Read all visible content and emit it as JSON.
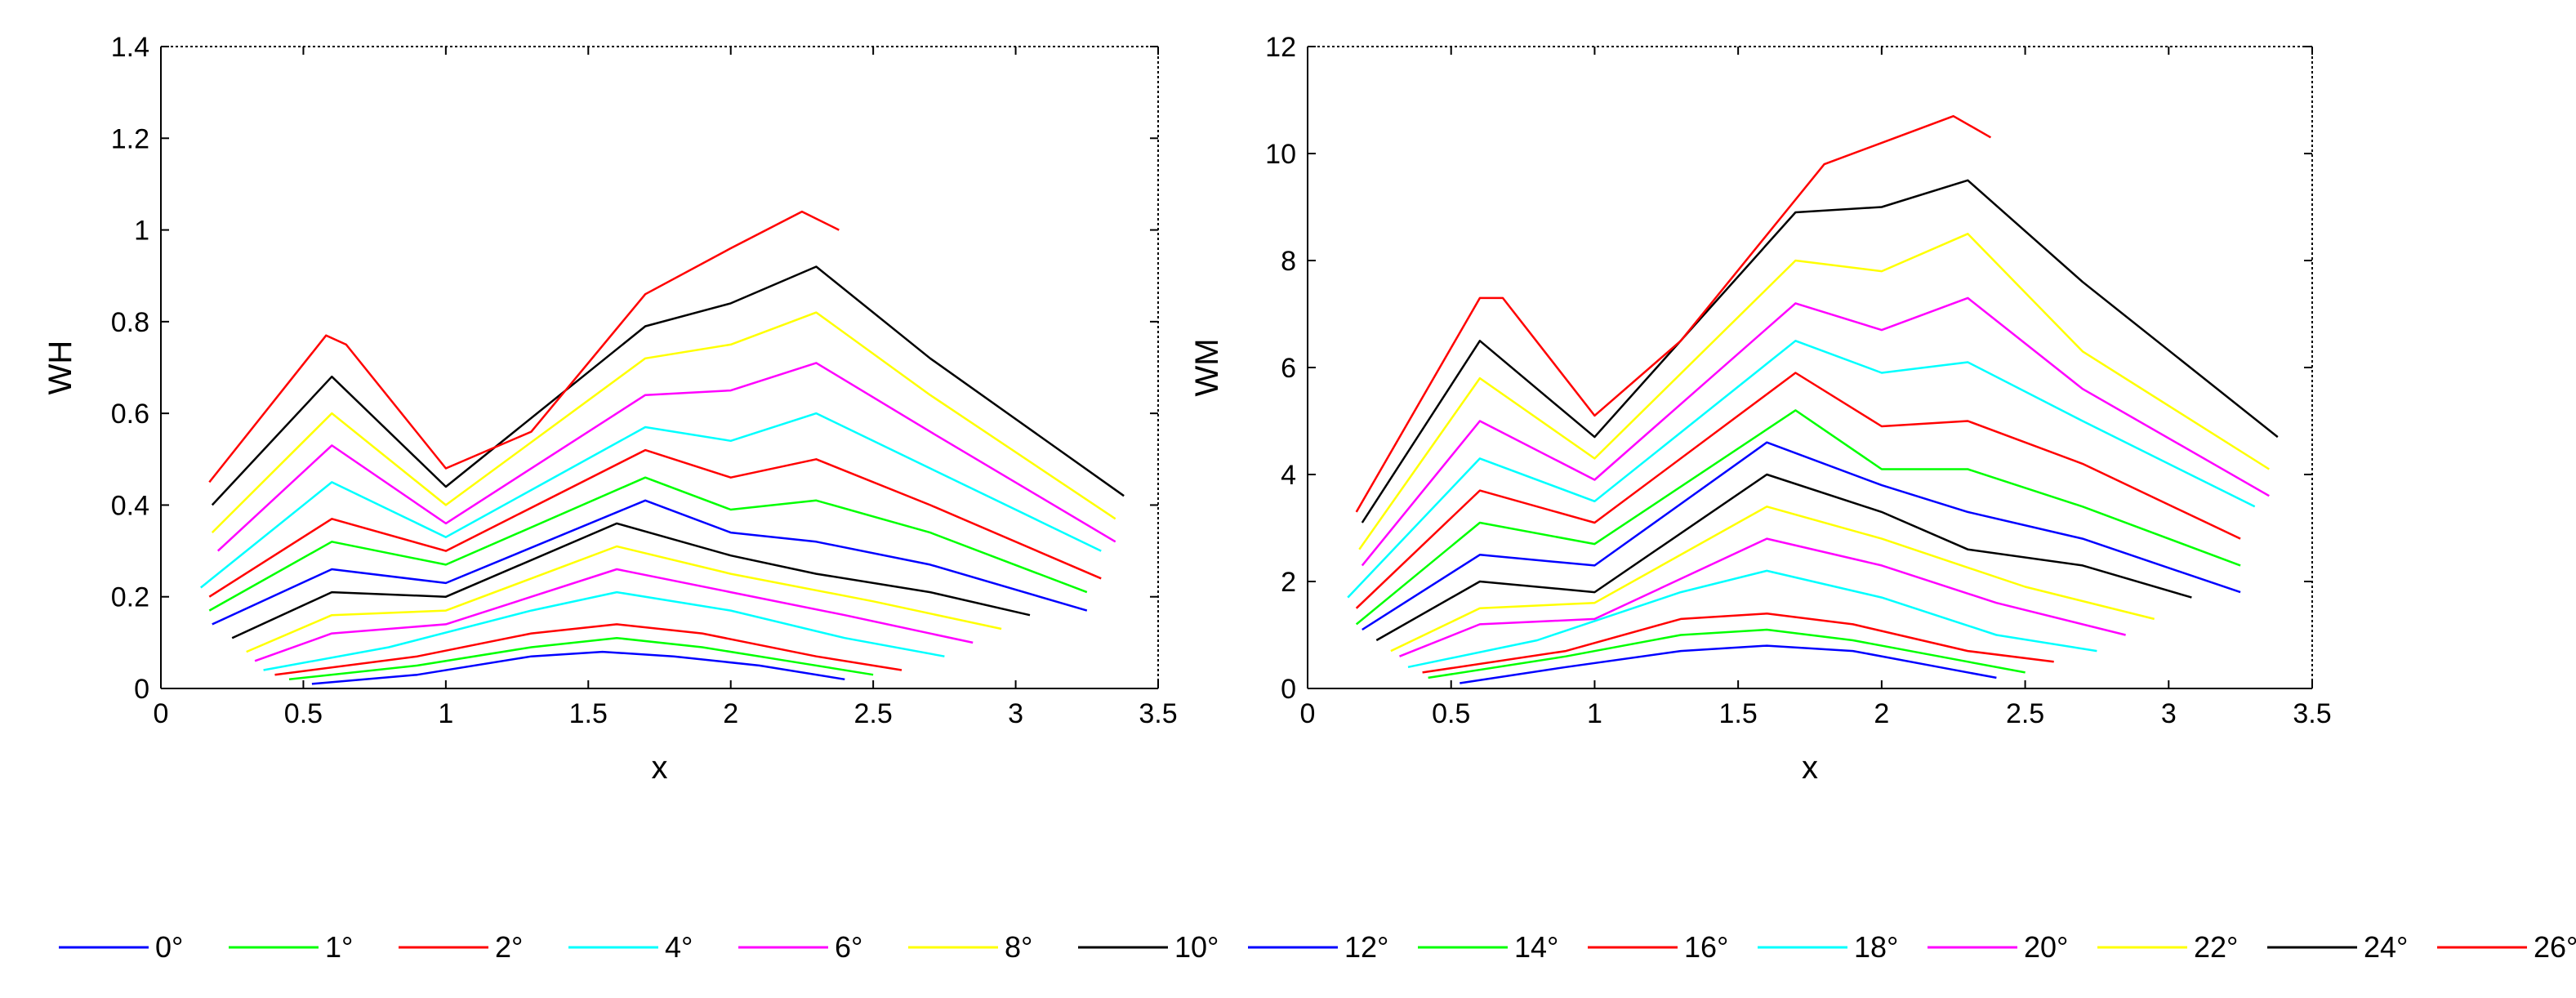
{
  "legend": {
    "placement": "bottom",
    "entries": [
      {
        "label": "0°",
        "color": "#0000ff"
      },
      {
        "label": "1°",
        "color": "#00ff00"
      },
      {
        "label": "2°",
        "color": "#ff0000"
      },
      {
        "label": "4°",
        "color": "#00ffff"
      },
      {
        "label": "6°",
        "color": "#ff00ff"
      },
      {
        "label": "8°",
        "color": "#ffff00"
      },
      {
        "label": "10°",
        "color": "#000000"
      },
      {
        "label": "12°",
        "color": "#0000ff"
      },
      {
        "label": "14°",
        "color": "#00ff00"
      },
      {
        "label": "16°",
        "color": "#ff0000"
      },
      {
        "label": "18°",
        "color": "#00ffff"
      },
      {
        "label": "20°",
        "color": "#ff00ff"
      },
      {
        "label": "22°",
        "color": "#ffff00"
      },
      {
        "label": "24°",
        "color": "#000000"
      },
      {
        "label": "26°",
        "color": "#ff0000"
      }
    ]
  },
  "chart_data": [
    {
      "type": "line",
      "xlabel": "x",
      "ylabel": "WH",
      "xlim": [
        0,
        3.5
      ],
      "ylim": [
        0,
        1.4
      ],
      "xticks": [
        "0",
        "0.5",
        "1",
        "1.5",
        "2",
        "2.5",
        "3",
        "3.5"
      ],
      "yticks": [
        "0",
        "0.2",
        "0.4",
        "0.6",
        "0.8",
        "1",
        "1.2",
        "1.4"
      ],
      "grid": false,
      "series": [
        {
          "name": "0°",
          "color": "#0000ff",
          "x": [
            0.53,
            0.9,
            1.3,
            1.55,
            1.8,
            2.1,
            2.4
          ],
          "y": [
            0.01,
            0.03,
            0.07,
            0.08,
            0.07,
            0.05,
            0.02
          ]
        },
        {
          "name": "1°",
          "color": "#00ff00",
          "x": [
            0.45,
            0.9,
            1.3,
            1.6,
            1.9,
            2.2,
            2.5
          ],
          "y": [
            0.02,
            0.05,
            0.09,
            0.11,
            0.09,
            0.06,
            0.03
          ]
        },
        {
          "name": "2°",
          "color": "#ff0000",
          "x": [
            0.4,
            0.9,
            1.3,
            1.6,
            1.9,
            2.3,
            2.6
          ],
          "y": [
            0.03,
            0.07,
            0.12,
            0.14,
            0.12,
            0.07,
            0.04
          ]
        },
        {
          "name": "4°",
          "color": "#00ffff",
          "x": [
            0.36,
            0.8,
            1.3,
            1.6,
            2.0,
            2.4,
            2.75
          ],
          "y": [
            0.04,
            0.09,
            0.17,
            0.21,
            0.17,
            0.11,
            0.07
          ]
        },
        {
          "name": "6°",
          "color": "#ff00ff",
          "x": [
            0.33,
            0.6,
            1.0,
            1.6,
            2.0,
            2.4,
            2.85
          ],
          "y": [
            0.06,
            0.12,
            0.14,
            0.26,
            0.21,
            0.16,
            0.1
          ]
        },
        {
          "name": "8°",
          "color": "#ffff00",
          "x": [
            0.3,
            0.6,
            1.0,
            1.6,
            2.0,
            2.5,
            2.95
          ],
          "y": [
            0.08,
            0.16,
            0.17,
            0.31,
            0.25,
            0.19,
            0.13
          ]
        },
        {
          "name": "10°",
          "color": "#000000",
          "x": [
            0.25,
            0.6,
            1.0,
            1.6,
            2.0,
            2.3,
            2.7,
            3.05
          ],
          "y": [
            0.11,
            0.21,
            0.2,
            0.36,
            0.29,
            0.25,
            0.21,
            0.16
          ]
        },
        {
          "name": "12°",
          "color": "#0000ff",
          "x": [
            0.18,
            0.6,
            1.0,
            1.7,
            2.0,
            2.3,
            2.7,
            3.25
          ],
          "y": [
            0.14,
            0.26,
            0.23,
            0.41,
            0.34,
            0.32,
            0.27,
            0.17
          ]
        },
        {
          "name": "14°",
          "color": "#00ff00",
          "x": [
            0.17,
            0.6,
            1.0,
            1.7,
            2.0,
            2.3,
            2.7,
            3.25
          ],
          "y": [
            0.17,
            0.32,
            0.27,
            0.46,
            0.39,
            0.41,
            0.34,
            0.21
          ]
        },
        {
          "name": "16°",
          "color": "#ff0000",
          "x": [
            0.17,
            0.6,
            1.0,
            1.7,
            2.0,
            2.3,
            2.7,
            3.3
          ],
          "y": [
            0.2,
            0.37,
            0.3,
            0.52,
            0.46,
            0.5,
            0.4,
            0.24
          ]
        },
        {
          "name": "18°",
          "color": "#00ffff",
          "x": [
            0.14,
            0.6,
            1.0,
            1.7,
            2.0,
            2.3,
            2.7,
            3.3
          ],
          "y": [
            0.22,
            0.45,
            0.33,
            0.57,
            0.54,
            0.6,
            0.48,
            0.3
          ]
        },
        {
          "name": "20°",
          "color": "#ff00ff",
          "x": [
            0.2,
            0.6,
            1.0,
            1.7,
            2.0,
            2.3,
            2.7,
            3.35
          ],
          "y": [
            0.3,
            0.53,
            0.36,
            0.64,
            0.65,
            0.71,
            0.56,
            0.32
          ]
        },
        {
          "name": "22°",
          "color": "#ffff00",
          "x": [
            0.18,
            0.6,
            1.0,
            1.7,
            2.0,
            2.3,
            2.7,
            3.35
          ],
          "y": [
            0.34,
            0.6,
            0.4,
            0.72,
            0.75,
            0.82,
            0.64,
            0.37
          ]
        },
        {
          "name": "24°",
          "color": "#000000",
          "x": [
            0.18,
            0.6,
            1.0,
            1.7,
            2.0,
            2.3,
            2.7,
            3.38
          ],
          "y": [
            0.4,
            0.68,
            0.44,
            0.79,
            0.84,
            0.92,
            0.72,
            0.42
          ]
        },
        {
          "name": "26°",
          "color": "#ff0000",
          "x": [
            0.17,
            0.58,
            0.65,
            1.0,
            1.3,
            1.7,
            2.0,
            2.25,
            2.38
          ],
          "y": [
            0.45,
            0.77,
            0.75,
            0.48,
            0.56,
            0.86,
            0.96,
            1.04,
            1.0
          ]
        }
      ]
    },
    {
      "type": "line",
      "xlabel": "x",
      "ylabel": "WM",
      "xlim": [
        0,
        3.5
      ],
      "ylim": [
        0,
        12
      ],
      "xticks": [
        "0",
        "0.5",
        "1",
        "1.5",
        "2",
        "2.5",
        "3",
        "3.5"
      ],
      "yticks": [
        "0",
        "2",
        "4",
        "6",
        "8",
        "10",
        "12"
      ],
      "grid": false,
      "series": [
        {
          "name": "0°",
          "color": "#0000ff",
          "x": [
            0.53,
            0.9,
            1.3,
            1.6,
            1.9,
            2.2,
            2.4
          ],
          "y": [
            0.1,
            0.4,
            0.7,
            0.8,
            0.7,
            0.4,
            0.2
          ]
        },
        {
          "name": "1°",
          "color": "#00ff00",
          "x": [
            0.42,
            0.9,
            1.3,
            1.6,
            1.9,
            2.2,
            2.5
          ],
          "y": [
            0.2,
            0.6,
            1.0,
            1.1,
            0.9,
            0.6,
            0.3
          ]
        },
        {
          "name": "2°",
          "color": "#ff0000",
          "x": [
            0.4,
            0.9,
            1.3,
            1.6,
            1.9,
            2.3,
            2.6
          ],
          "y": [
            0.3,
            0.7,
            1.3,
            1.4,
            1.2,
            0.7,
            0.5
          ]
        },
        {
          "name": "4°",
          "color": "#00ffff",
          "x": [
            0.35,
            0.8,
            1.3,
            1.6,
            2.0,
            2.4,
            2.75
          ],
          "y": [
            0.4,
            0.9,
            1.8,
            2.2,
            1.7,
            1.0,
            0.7
          ]
        },
        {
          "name": "6°",
          "color": "#ff00ff",
          "x": [
            0.32,
            0.6,
            1.0,
            1.6,
            2.0,
            2.4,
            2.85
          ],
          "y": [
            0.6,
            1.2,
            1.3,
            2.8,
            2.3,
            1.6,
            1.0
          ]
        },
        {
          "name": "8°",
          "color": "#ffff00",
          "x": [
            0.29,
            0.6,
            1.0,
            1.6,
            2.0,
            2.5,
            2.95
          ],
          "y": [
            0.7,
            1.5,
            1.6,
            3.4,
            2.8,
            1.9,
            1.3
          ]
        },
        {
          "name": "10°",
          "color": "#000000",
          "x": [
            0.24,
            0.6,
            1.0,
            1.6,
            2.0,
            2.3,
            2.7,
            3.08
          ],
          "y": [
            0.9,
            2.0,
            1.8,
            4.0,
            3.3,
            2.6,
            2.3,
            1.7
          ]
        },
        {
          "name": "12°",
          "color": "#0000ff",
          "x": [
            0.19,
            0.6,
            1.0,
            1.6,
            2.0,
            2.3,
            2.7,
            3.25
          ],
          "y": [
            1.1,
            2.5,
            2.3,
            4.6,
            3.8,
            3.3,
            2.8,
            1.8
          ]
        },
        {
          "name": "14°",
          "color": "#00ff00",
          "x": [
            0.17,
            0.6,
            1.0,
            1.7,
            2.0,
            2.3,
            2.7,
            3.25
          ],
          "y": [
            1.2,
            3.1,
            2.7,
            5.2,
            4.1,
            4.1,
            3.4,
            2.3
          ]
        },
        {
          "name": "16°",
          "color": "#ff0000",
          "x": [
            0.17,
            0.6,
            1.0,
            1.7,
            2.0,
            2.3,
            2.7,
            3.25
          ],
          "y": [
            1.5,
            3.7,
            3.1,
            5.9,
            4.9,
            5.0,
            4.2,
            2.8
          ]
        },
        {
          "name": "18°",
          "color": "#00ffff",
          "x": [
            0.14,
            0.6,
            1.0,
            1.7,
            2.0,
            2.3,
            2.7,
            3.3
          ],
          "y": [
            1.7,
            4.3,
            3.5,
            6.5,
            5.9,
            6.1,
            5.0,
            3.4
          ]
        },
        {
          "name": "20°",
          "color": "#ff00ff",
          "x": [
            0.19,
            0.6,
            1.0,
            1.7,
            2.0,
            2.3,
            2.7,
            3.35
          ],
          "y": [
            2.3,
            5.0,
            3.9,
            7.2,
            6.7,
            7.3,
            5.6,
            3.6
          ]
        },
        {
          "name": "22°",
          "color": "#ffff00",
          "x": [
            0.18,
            0.6,
            1.0,
            1.7,
            2.0,
            2.3,
            2.7,
            3.35
          ],
          "y": [
            2.6,
            5.8,
            4.3,
            8.0,
            7.8,
            8.5,
            6.3,
            4.1
          ]
        },
        {
          "name": "24°",
          "color": "#000000",
          "x": [
            0.19,
            0.6,
            1.0,
            1.7,
            2.0,
            2.3,
            2.7,
            3.38
          ],
          "y": [
            3.1,
            6.5,
            4.7,
            8.9,
            9.0,
            9.5,
            7.6,
            4.7
          ]
        },
        {
          "name": "26°",
          "color": "#ff0000",
          "x": [
            0.17,
            0.6,
            0.68,
            1.0,
            1.3,
            1.8,
            2.0,
            2.25,
            2.38
          ],
          "y": [
            3.3,
            7.3,
            7.3,
            5.1,
            6.5,
            9.8,
            10.2,
            10.7,
            10.3
          ]
        }
      ]
    }
  ]
}
